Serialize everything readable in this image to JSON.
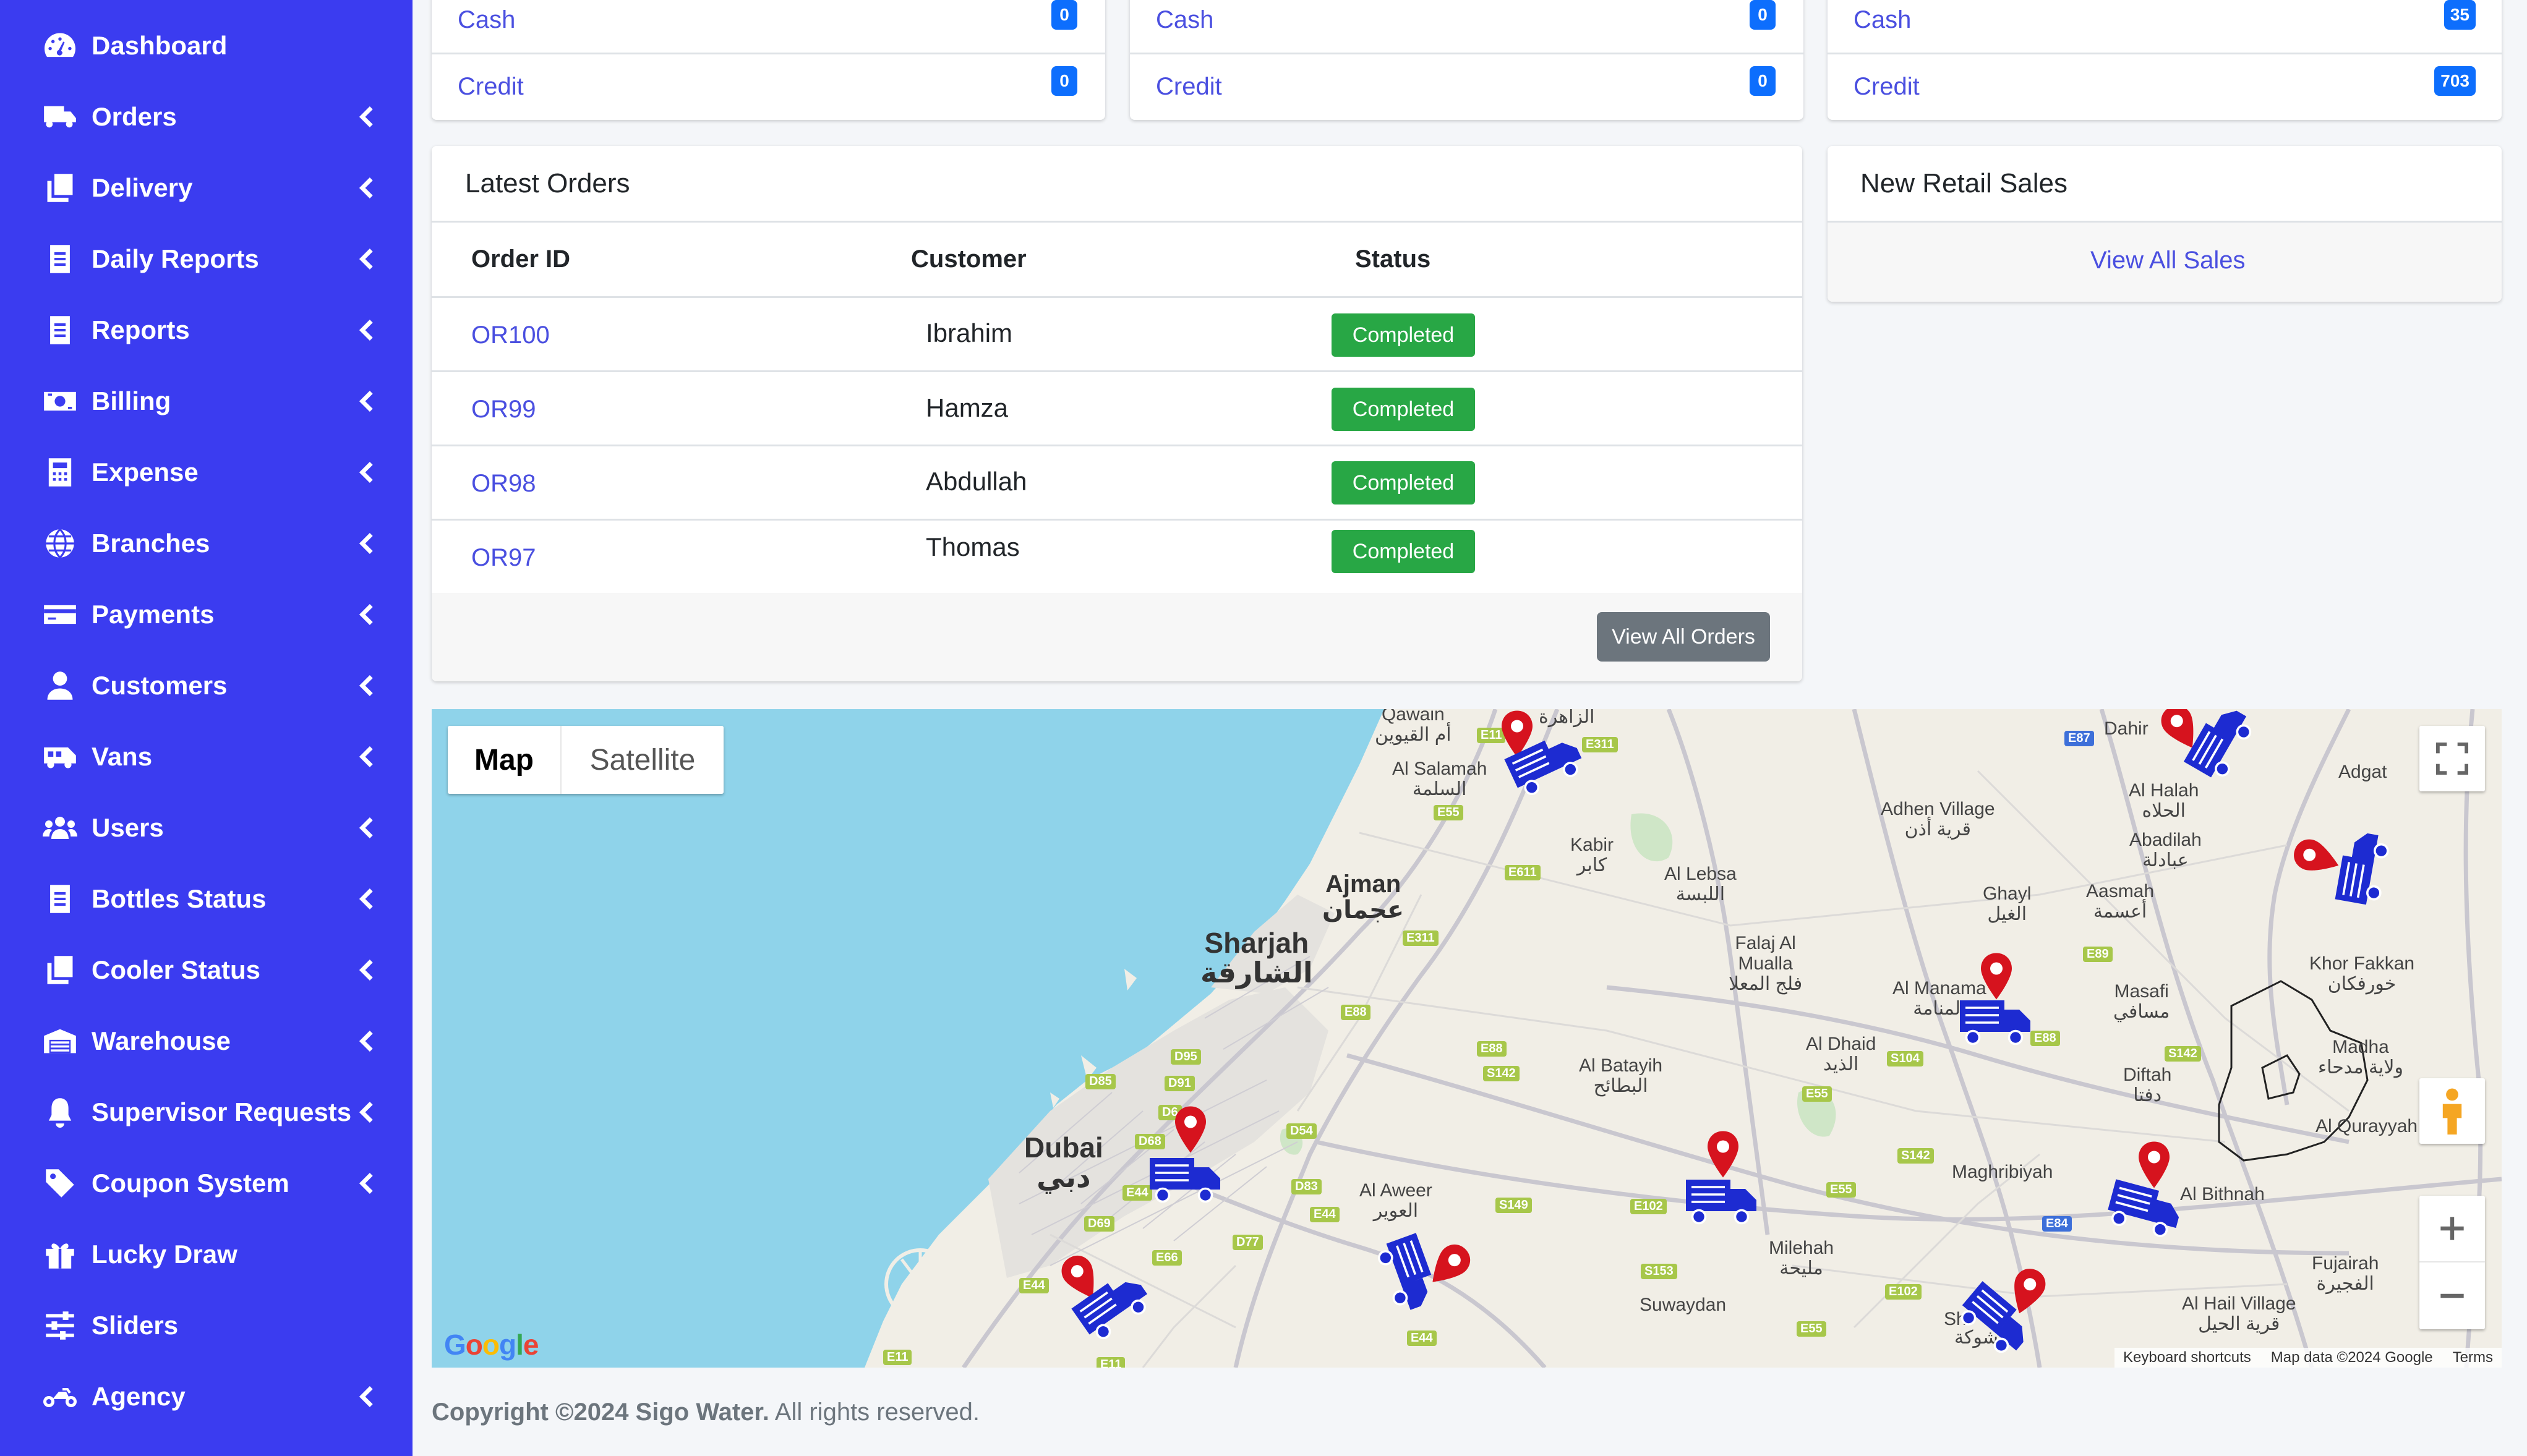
{
  "sidebar": {
    "items": [
      {
        "label": "Dashboard",
        "icon": "gauge-icon",
        "chevron": false
      },
      {
        "label": "Orders",
        "icon": "truck-icon",
        "chevron": true
      },
      {
        "label": "Delivery",
        "icon": "copy-icon",
        "chevron": true
      },
      {
        "label": "Daily Reports",
        "icon": "document-icon",
        "chevron": true
      },
      {
        "label": "Reports",
        "icon": "document-icon",
        "chevron": true
      },
      {
        "label": "Billing",
        "icon": "money-icon",
        "chevron": true
      },
      {
        "label": "Expense",
        "icon": "calculator-icon",
        "chevron": true
      },
      {
        "label": "Branches",
        "icon": "globe-icon",
        "chevron": true
      },
      {
        "label": "Payments",
        "icon": "credit-card-icon",
        "chevron": true
      },
      {
        "label": "Customers",
        "icon": "user-icon",
        "chevron": true
      },
      {
        "label": "Vans",
        "icon": "van-icon",
        "chevron": true
      },
      {
        "label": "Users",
        "icon": "users-icon",
        "chevron": true
      },
      {
        "label": "Bottles Status",
        "icon": "document-icon",
        "chevron": true
      },
      {
        "label": "Cooler Status",
        "icon": "copy-icon",
        "chevron": true
      },
      {
        "label": "Warehouse",
        "icon": "warehouse-icon",
        "chevron": true
      },
      {
        "label": "Supervisor Requests",
        "icon": "bell-icon",
        "chevron": true
      },
      {
        "label": "Coupon System",
        "icon": "tag-icon",
        "chevron": true
      },
      {
        "label": "Lucky Draw",
        "icon": "gift-icon",
        "chevron": false
      },
      {
        "label": "Sliders",
        "icon": "sliders-icon",
        "chevron": false
      },
      {
        "label": "Agency",
        "icon": "motorcycle-icon",
        "chevron": true
      }
    ]
  },
  "summary_cards": [
    {
      "rows": [
        {
          "label": "Cash",
          "count": "0"
        },
        {
          "label": "Credit",
          "count": "0"
        }
      ]
    },
    {
      "rows": [
        {
          "label": "Cash",
          "count": "0"
        },
        {
          "label": "Credit",
          "count": "0"
        }
      ]
    },
    {
      "rows": [
        {
          "label": "Cash",
          "count": "35"
        },
        {
          "label": "Credit",
          "count": "703"
        }
      ]
    }
  ],
  "latest_orders": {
    "title": "Latest Orders",
    "columns": [
      "Order ID",
      "Customer",
      "Status"
    ],
    "rows": [
      {
        "id": "OR100",
        "customer": "Ibrahim",
        "status": "Completed"
      },
      {
        "id": "OR99",
        "customer": "Hamza",
        "status": "Completed"
      },
      {
        "id": "OR98",
        "customer": "Abdullah",
        "status": "Completed"
      },
      {
        "id": "OR97",
        "customer": "Thomas",
        "status": "Completed"
      }
    ],
    "view_all": "View All Orders"
  },
  "retail_sales": {
    "title": "New Retail Sales",
    "view_all": "View All Sales"
  },
  "map": {
    "type_map": "Map",
    "type_satellite": "Satellite",
    "google": "Google",
    "keyboard": "Keyboard shortcuts",
    "data": "Map data ©2024 Google",
    "terms": "Terms",
    "places": {
      "qawain": "Qawain",
      "qawain_ar": "أم القيوين",
      "zahra": "الزاهرة",
      "salamah": "Al Salamah",
      "salamah_ar": "السلمة",
      "kabir": "Kabir",
      "kabir_ar": "كابر",
      "lebsa": "Al Lebsa",
      "lebsa_ar": "اللبسة",
      "ajman": "Ajman",
      "ajman_ar": "عجمان",
      "sharjah": "Sharjah",
      "sharjah_ar": "الشارقة",
      "falaj": "Falaj Al",
      "falaj2": "Mualla",
      "falaj_ar": "فلج المعلا",
      "adhen": "Adhen Village",
      "adhen_ar": "قرية أذن",
      "dahir": "Dahir",
      "halah": "Al Halah",
      "halah_ar": "الحلاه",
      "abadilah": "Abadilah",
      "abadilah_ar": "عبادلة",
      "adgat": "Adgat",
      "ghayl": "Ghayl",
      "ghayl_ar": "الغيل",
      "aasmah": "Aasmah",
      "aasmah_ar": "أعسمة",
      "khorfakkan": "Khor Fakkan",
      "khorfakkan_ar": "خورفكان",
      "manama": "Al Manama",
      "manama_ar": "المنامة",
      "masafi": "Masafi",
      "masafi_ar": "مسافي",
      "madha": "Madha",
      "madha_ar": "ولاية مدحاء",
      "dhaid": "Al Dhaid",
      "dhaid_ar": "الذيد",
      "batayih": "Al Batayih",
      "batayih_ar": "البطائح",
      "diftah": "Diftah",
      "diftah_ar": "دفتا",
      "qurayyah": "Al Qurayyah",
      "dubai": "Dubai",
      "dubai_ar": "دبي",
      "aweer": "Al Aweer",
      "aweer_ar": "العوير",
      "maghribiyah": "Maghribiyah",
      "bithnah": "Al Bithnah",
      "milehah": "Milehah",
      "milehah_ar": "مليحة",
      "fujairah": "Fujairah",
      "fujairah_ar": "الفجيرة",
      "hail": "Al Hail Village",
      "hail_ar": "قرية الحيل",
      "suwaydan": "Suwaydan",
      "shawkah": "Sh",
      "shawkah_ar": "شوكة"
    },
    "shields": [
      "E11",
      "E311",
      "E87",
      "E55",
      "E611",
      "E311",
      "E89",
      "E88",
      "E88",
      "S142",
      "S104",
      "E88",
      "S142",
      "D95",
      "D85",
      "D91",
      "D6",
      "D54",
      "D68",
      "E55",
      "S142",
      "E44",
      "D83",
      "E44",
      "S149",
      "E102",
      "E55",
      "E84",
      "D69",
      "D77",
      "E66",
      "E44",
      "S153",
      "E102",
      "E55",
      "E44",
      "E11",
      "E11"
    ],
    "colors": {
      "water": "#8fd3ea",
      "land": "#f1eee6",
      "truck": "#1d2bd1",
      "marker": "#d6131e"
    }
  },
  "footer": {
    "copyright": "Copyright ©2024 Sigo Water.",
    "rights": "All rights reserved."
  },
  "colors": {
    "sidebar": "#3b3cf0",
    "badge_green": "#28a745",
    "count_blue": "#0d6efd",
    "link": "#4a4fe0"
  }
}
